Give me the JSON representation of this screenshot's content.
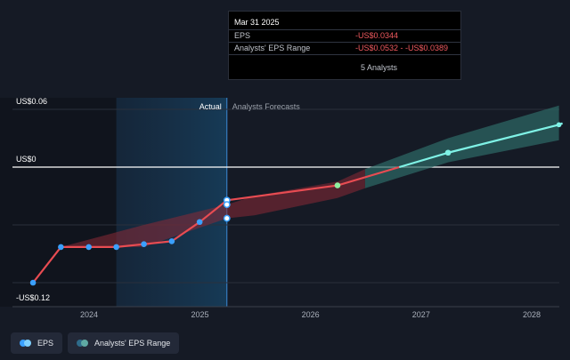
{
  "tooltip": {
    "date": "Mar 31 2025",
    "rows": [
      {
        "label": "EPS",
        "value": "-US$0.0344"
      },
      {
        "label": "Analysts' EPS Range",
        "value": "-US$0.0532 - -US$0.0389"
      }
    ],
    "analysts": "5 Analysts"
  },
  "legend": {
    "eps_label": "EPS",
    "range_label": "Analysts' EPS Range"
  },
  "colors": {
    "background": "#151a25",
    "actual_line": "#e84c52",
    "forecast_line": "#7ff2e6",
    "range_red": "#8a2a36",
    "range_teal": "#2e6b66",
    "point_blue": "#3aa0ff",
    "zero_line": "#ffffff"
  },
  "chart_data": {
    "type": "line",
    "title": "",
    "xlabel": "",
    "ylabel": "",
    "x_ticks": [
      "2024",
      "2025",
      "2026",
      "2027",
      "2028"
    ],
    "y_tick_labels": [
      {
        "value": 0.06,
        "label": "US$0.06"
      },
      {
        "value": 0,
        "label": "US$0"
      },
      {
        "value": -0.12,
        "label": "-US$0.12"
      }
    ],
    "ylim": [
      -0.12,
      0.06
    ],
    "region_labels": {
      "actual": "Actual",
      "forecast": "Analysts Forecasts"
    },
    "series": [
      {
        "name": "EPS",
        "values": [
          {
            "x": "2023-06-30",
            "y": -0.12
          },
          {
            "x": "2023-09-30",
            "y": -0.083
          },
          {
            "x": "2023-12-31",
            "y": -0.083
          },
          {
            "x": "2024-03-31",
            "y": -0.083
          },
          {
            "x": "2024-06-30",
            "y": -0.08
          },
          {
            "x": "2024-09-30",
            "y": -0.077
          },
          {
            "x": "2024-12-31",
            "y": -0.057
          },
          {
            "x": "2025-03-31",
            "y": -0.0344
          }
        ]
      },
      {
        "name": "EPS forecast",
        "values": [
          {
            "x": "2025-03-31",
            "y": -0.0344
          },
          {
            "x": "2026-03-31",
            "y": -0.019
          },
          {
            "x": "2027-03-31",
            "y": 0.015
          },
          {
            "x": "2028-03-31",
            "y": 0.044
          }
        ]
      }
    ],
    "range_points": [
      {
        "x": "2025-03-31",
        "y": -0.0389
      },
      {
        "x": "2025-03-31",
        "y": -0.0532
      }
    ],
    "ranges": [
      {
        "name": "Analysts' EPS Range",
        "values": [
          {
            "x": "2023-09-30",
            "low": -0.083,
            "high": -0.083
          },
          {
            "x": "2024-06-30",
            "low": -0.083,
            "high": -0.06
          },
          {
            "x": "2025-03-31",
            "low": -0.0532,
            "high": -0.0389
          },
          {
            "x": "2025-06-30",
            "low": -0.05,
            "high": -0.03
          },
          {
            "x": "2026-03-31",
            "low": -0.032,
            "high": -0.015
          },
          {
            "x": "2026-06-30",
            "low": -0.022,
            "high": -0.002
          },
          {
            "x": "2027-03-31",
            "low": 0.005,
            "high": 0.03
          },
          {
            "x": "2028-03-31",
            "low": 0.028,
            "high": 0.064
          }
        ]
      }
    ],
    "grid": false,
    "legend_position": "bottom-left"
  }
}
